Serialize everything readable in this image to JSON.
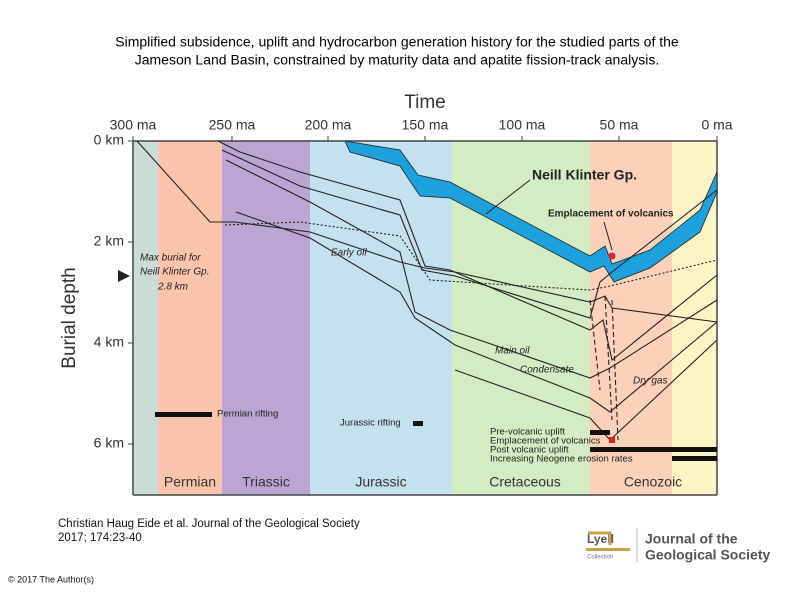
{
  "header": {
    "title": "Simplified subsidence, uplift and hydrocarbon generation history for the studied parts of the Jameson Land Basin, constrained by maturity data and apatite fission-track analysis."
  },
  "figure": {
    "time_title": "Time",
    "time_ticks": [
      "300 ma",
      "250 ma",
      "200 ma",
      "150 ma",
      "100 ma",
      "50 ma",
      "0 ma"
    ],
    "depth_title": "Burial depth",
    "depth_ticks": [
      "0 km",
      "2 km",
      "4 km",
      "6 km"
    ],
    "periods": [
      "Permian",
      "Triassic",
      "Jurassic",
      "Cretaceous",
      "Cenozoic"
    ],
    "max_burial": [
      "Max burial for",
      "Neill Klinter Gp.",
      "2.8 km"
    ],
    "unit_label": "Neill Klinter Gp.",
    "volcanics_label": "Emplacement of volcanics",
    "zones": [
      "Early oil",
      "Main oil",
      "Condensate",
      "Dry gas"
    ],
    "permian_rifting": "Permian rifting",
    "jurassic_rifting": "Jurassic rifting",
    "legend": [
      "Pre-volcanic uplift",
      "Emplacement of volcanics",
      "Post volcanic uplift",
      "Increasing Neogene erosion rates"
    ]
  },
  "citation": [
    "Christian Haug Eide et al. Journal of the Geological Society",
    "2017; 174:23-40"
  ],
  "copyright": "© 2017 The Author(s)",
  "logos": {
    "lyell": "Lyell",
    "lyell_sub": "Collection",
    "journal": [
      "Journal of the",
      "Geological Society"
    ]
  }
}
